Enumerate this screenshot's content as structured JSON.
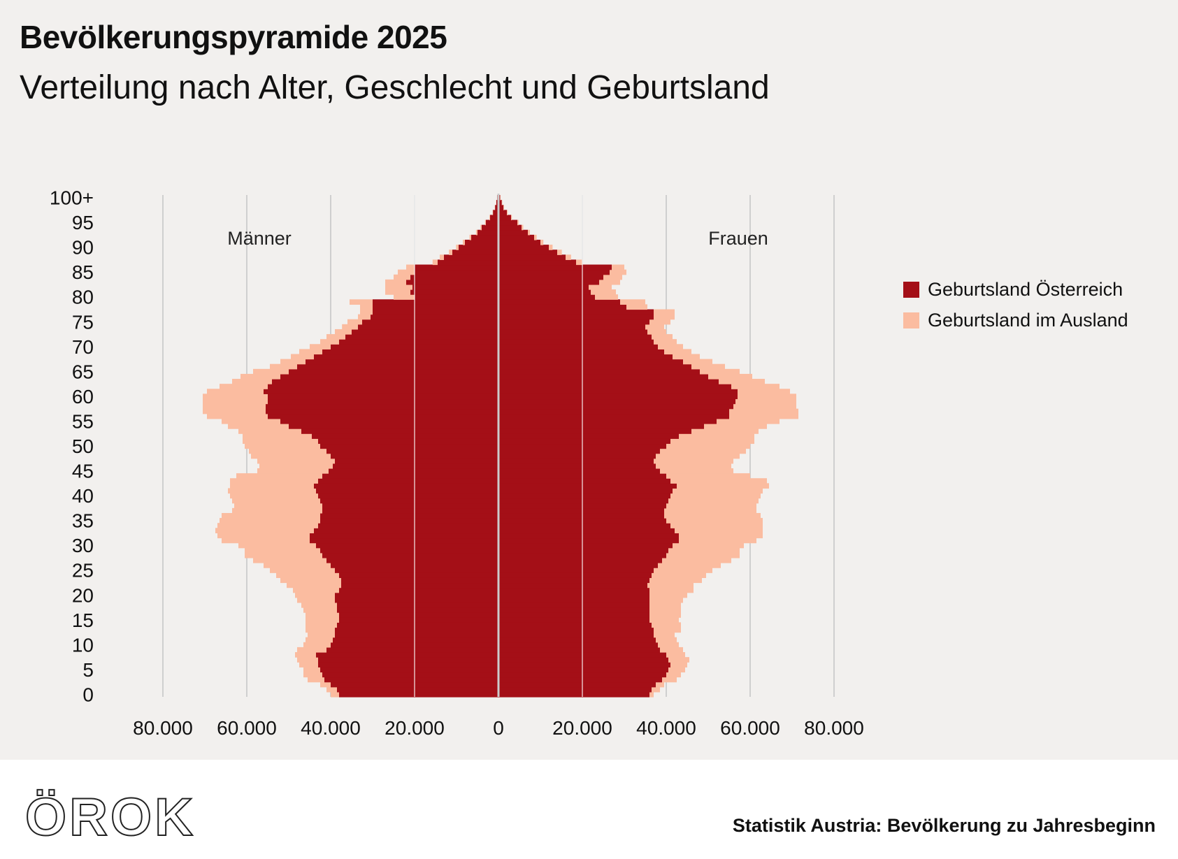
{
  "header": {
    "title": "Bevölkerungspyramide 2025",
    "subtitle": "Verteilung nach Alter, Geschlecht und Geburtsland"
  },
  "legend": [
    {
      "label": "Geburtsland Österreich",
      "color": "#a40f17"
    },
    {
      "label": "Geburtsland im Ausland",
      "color": "#fbbca0"
    }
  ],
  "footer": {
    "logo": "ÖROK",
    "source": "Statistik Austria: Bevölkerung zu Jahresbeginn"
  },
  "chart_data": {
    "type": "bar",
    "orientation": "horizontal-pyramid",
    "side_labels": {
      "left": "Männer",
      "right": "Frauen"
    },
    "xlim": [
      -80000,
      80000
    ],
    "x_ticks": [
      -80000,
      -60000,
      -40000,
      -20000,
      0,
      20000,
      40000,
      60000,
      80000
    ],
    "x_tick_labels": [
      "80.000",
      "60.000",
      "40.000",
      "20.000",
      "0",
      "20.000",
      "40.000",
      "60.000",
      "80.000"
    ],
    "y_tick_ages": [
      0,
      5,
      10,
      15,
      20,
      25,
      30,
      35,
      40,
      45,
      50,
      55,
      60,
      65,
      70,
      75,
      80,
      85,
      90,
      95,
      100
    ],
    "y_tick_labels": [
      "0",
      "5",
      "10",
      "15",
      "20",
      "25",
      "30",
      "35",
      "40",
      "45",
      "50",
      "55",
      "60",
      "65",
      "70",
      "75",
      "80",
      "85",
      "90",
      "95",
      "100+"
    ],
    "ages": [
      0,
      1,
      2,
      3,
      4,
      5,
      6,
      7,
      8,
      9,
      10,
      11,
      12,
      13,
      14,
      15,
      16,
      17,
      18,
      19,
      20,
      21,
      22,
      23,
      24,
      25,
      26,
      27,
      28,
      29,
      30,
      31,
      32,
      33,
      34,
      35,
      36,
      37,
      38,
      39,
      40,
      41,
      42,
      43,
      44,
      45,
      46,
      47,
      48,
      49,
      50,
      51,
      52,
      53,
      54,
      55,
      56,
      57,
      58,
      59,
      60,
      61,
      62,
      63,
      64,
      65,
      66,
      67,
      68,
      69,
      70,
      71,
      72,
      73,
      74,
      75,
      76,
      77,
      78,
      79,
      80,
      81,
      82,
      83,
      84,
      85,
      86,
      87,
      88,
      89,
      90,
      91,
      92,
      93,
      94,
      95,
      96,
      97,
      98,
      99,
      100
    ],
    "series": [
      {
        "name": "Männer – Geburtsland Österreich",
        "side": "left",
        "values": [
          38000,
          38500,
          40000,
          41500,
          42000,
          42500,
          43000,
          43000,
          43500,
          41000,
          40000,
          39500,
          39000,
          39000,
          38500,
          38000,
          38000,
          38500,
          38500,
          39000,
          39000,
          38000,
          37500,
          37500,
          38000,
          39000,
          40000,
          41000,
          42000,
          42500,
          43500,
          45000,
          45000,
          44000,
          43000,
          42500,
          42500,
          42000,
          42000,
          42500,
          43000,
          43500,
          44000,
          43000,
          42000,
          40500,
          39500,
          39000,
          40000,
          41000,
          42500,
          43000,
          44500,
          47000,
          50000,
          52000,
          55000,
          55500,
          55500,
          55000,
          55000,
          56000,
          55000,
          54000,
          52000,
          50000,
          48000,
          46000,
          44000,
          42000,
          40000,
          38000,
          36500,
          35000,
          33500,
          32500,
          30500,
          30000,
          30000,
          30000,
          20000,
          21000,
          20500,
          22000,
          21000,
          20000,
          20000,
          14500,
          13000,
          11000,
          9500,
          8000,
          6500,
          5000,
          4000,
          3000,
          2000,
          1300,
          800,
          500,
          300
        ]
      },
      {
        "name": "Männer – Geburtsland im Ausland",
        "side": "left",
        "values": [
          2000,
          2500,
          2500,
          4000,
          4500,
          4000,
          4500,
          5000,
          5000,
          7000,
          6500,
          6500,
          6500,
          7000,
          7500,
          8000,
          8000,
          8000,
          8500,
          9000,
          9500,
          11000,
          13000,
          14500,
          15000,
          15500,
          16000,
          17500,
          18500,
          18000,
          18500,
          21000,
          22000,
          23500,
          24000,
          24000,
          23500,
          21500,
          21000,
          21000,
          21000,
          21000,
          20000,
          21000,
          20500,
          17000,
          17500,
          18500,
          19000,
          18500,
          18000,
          18000,
          16500,
          15000,
          14500,
          14000,
          14500,
          15000,
          15000,
          15500,
          15500,
          13500,
          11500,
          9500,
          9500,
          8500,
          6500,
          6000,
          5500,
          5500,
          5000,
          4500,
          4500,
          4000,
          3800,
          3500,
          3000,
          3000,
          3000,
          5500,
          5000,
          6000,
          6500,
          5000,
          4000,
          4000,
          2000,
          1200,
          1000,
          800,
          600,
          500,
          400,
          350,
          300,
          200,
          150,
          100,
          80,
          60,
          40
        ]
      },
      {
        "name": "Frauen – Geburtsland Österreich",
        "side": "right",
        "values": [
          36000,
          36500,
          37500,
          39000,
          40000,
          40500,
          41000,
          40500,
          40000,
          38500,
          38000,
          37500,
          37000,
          37000,
          36500,
          36000,
          36000,
          36000,
          36000,
          36000,
          36000,
          36000,
          35500,
          36000,
          36500,
          37000,
          38000,
          39000,
          40000,
          40500,
          41500,
          43000,
          43000,
          42000,
          41000,
          40000,
          39500,
          39500,
          40000,
          40500,
          41000,
          41500,
          42500,
          41000,
          40000,
          38500,
          37500,
          37000,
          37500,
          38500,
          40000,
          41000,
          43000,
          46000,
          49000,
          52000,
          55000,
          55000,
          56000,
          56500,
          57000,
          57000,
          55500,
          52500,
          50000,
          48000,
          46000,
          44000,
          41500,
          39500,
          38000,
          37000,
          36500,
          35500,
          35000,
          36000,
          37000,
          37000,
          30500,
          29000,
          23000,
          22000,
          21500,
          24000,
          25000,
          26500,
          27000,
          18500,
          16000,
          14000,
          12000,
          10000,
          8500,
          7000,
          5500,
          4500,
          3000,
          2000,
          1200,
          800,
          400
        ]
      },
      {
        "name": "Frauen – Geburtsland im Ausland",
        "side": "right",
        "values": [
          1000,
          2000,
          2000,
          3500,
          3500,
          4000,
          4000,
          5000,
          4500,
          5500,
          5000,
          5000,
          5000,
          6500,
          7000,
          7000,
          7500,
          7500,
          7500,
          8000,
          9000,
          10500,
          11000,
          12500,
          13000,
          14000,
          15000,
          16500,
          17500,
          17000,
          17000,
          18500,
          20000,
          21000,
          22000,
          23000,
          23000,
          22000,
          21500,
          21500,
          21500,
          21500,
          22000,
          23000,
          20000,
          17500,
          18000,
          19000,
          20000,
          20500,
          20000,
          20000,
          18000,
          16000,
          15000,
          15000,
          16500,
          16500,
          15000,
          14500,
          14000,
          12500,
          11500,
          11000,
          10500,
          9500,
          8000,
          7000,
          6500,
          6500,
          6000,
          5500,
          5000,
          4500,
          4500,
          5000,
          5000,
          5000,
          5000,
          6000,
          5500,
          6000,
          5500,
          5000,
          4500,
          4000,
          3000,
          1500,
          1300,
          1100,
          900,
          700,
          600,
          500,
          400,
          300,
          200,
          200,
          150,
          100,
          100
        ]
      }
    ]
  }
}
